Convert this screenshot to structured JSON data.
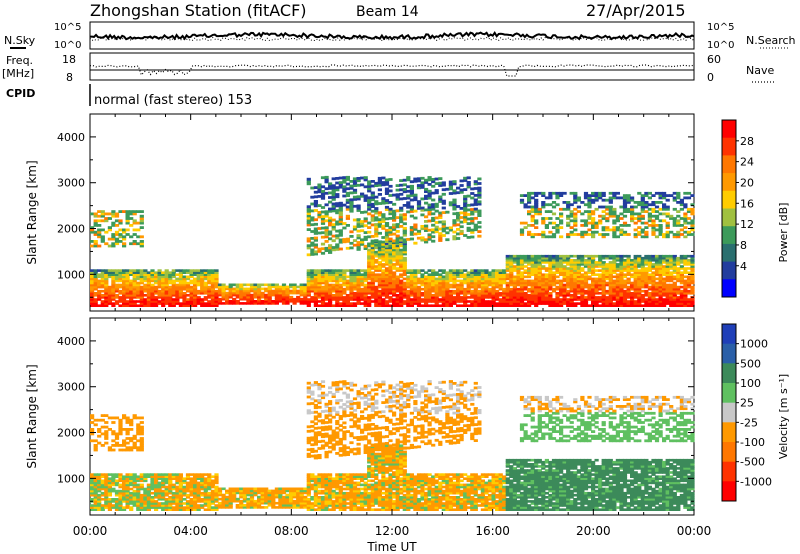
{
  "header": {
    "station": "Zhongshan Station (fitACF)",
    "beam": "Beam 14",
    "date": "27/Apr/2015"
  },
  "noise_panel": {
    "left_label_line1": "N.Sky",
    "right_label": "N.Search",
    "y_top_label": "10^5",
    "y_bottom_label": "10^0"
  },
  "freq_panel": {
    "label_line1": "Freq.",
    "label_line2": "[MHz]",
    "left_ticks": [
      "18",
      "8"
    ],
    "right_label": "Nave",
    "right_ticks": [
      "60",
      "0"
    ]
  },
  "cpid": {
    "label": "CPID",
    "mode": "normal (fast stereo) 153"
  },
  "chart_data": [
    {
      "type": "heatmap",
      "title": "",
      "ylabel": "Slant Range [km]",
      "ylim": [
        200,
        4500
      ],
      "yticks": [
        "1000",
        "2000",
        "3000",
        "4000"
      ],
      "xlabel": "Time UT",
      "xlim": [
        0,
        24
      ],
      "xticks": [
        "00:00",
        "04:00",
        "08:00",
        "12:00",
        "16:00",
        "20:00",
        "00:00"
      ],
      "colorbar_label": "Power [dB]",
      "colorbar_ticks": [
        "28",
        "24",
        "20",
        "16",
        "12",
        "8",
        "4"
      ],
      "colorbar_colors": [
        "#ff0000",
        "#ff3300",
        "#ff7700",
        "#ff9900",
        "#ffcc00",
        "#a0c040",
        "#3c9a5a",
        "#2a6f6f",
        "#223d9e",
        "#0000ff"
      ]
    },
    {
      "type": "heatmap",
      "title": "",
      "ylabel": "Slant Range [km]",
      "ylim": [
        200,
        4500
      ],
      "yticks": [
        "1000",
        "2000",
        "3000",
        "4000"
      ],
      "xlabel": "Time UT",
      "xlim": [
        0,
        24
      ],
      "xticks": [
        "00:00",
        "04:00",
        "08:00",
        "12:00",
        "16:00",
        "20:00",
        "00:00"
      ],
      "colorbar_label": "Velocity [m s⁻¹]",
      "colorbar_ticks": [
        "1000",
        "500",
        "100",
        "25",
        "-25",
        "-100",
        "-500",
        "-1000"
      ],
      "colorbar_colors": [
        "#1f3fb8",
        "#2a5fa8",
        "#3c8a5a",
        "#5fc060",
        "#c8c8c8",
        "#ff9900",
        "#ff7700",
        "#ff3300",
        "#ff0000"
      ]
    }
  ]
}
